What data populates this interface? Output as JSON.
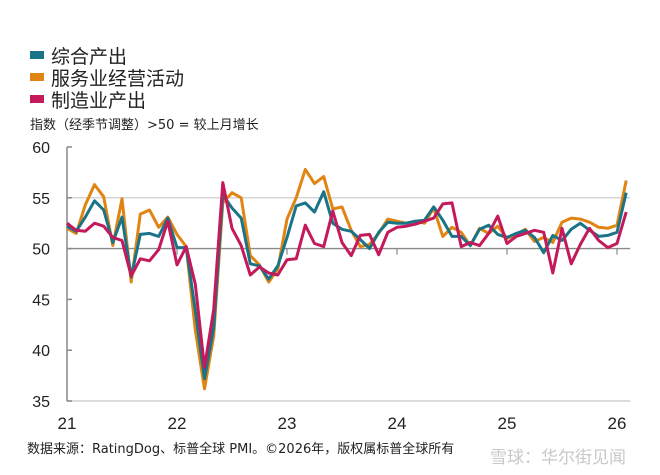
{
  "chart_data": {
    "type": "line",
    "subtitle": "指数（经季节调整）>50 = 较上月增长",
    "x_tick_labels": [
      "21",
      "22",
      "23",
      "24",
      "25",
      "26"
    ],
    "y_tick_labels": [
      "35",
      "40",
      "45",
      "50",
      "55",
      "60"
    ],
    "ylim": [
      35,
      60
    ],
    "x_range": [
      "2021-01",
      "2026-02"
    ],
    "grid": "horizontal at 50 and 55",
    "legend_placement": "top-left",
    "x": [
      "2021-01",
      "2021-02",
      "2021-03",
      "2021-04",
      "2021-05",
      "2021-06",
      "2021-07",
      "2021-08",
      "2021-09",
      "2021-10",
      "2021-11",
      "2021-12",
      "2022-01",
      "2022-02",
      "2022-03",
      "2022-04",
      "2022-05",
      "2022-06",
      "2022-07",
      "2022-08",
      "2022-09",
      "2022-10",
      "2022-11",
      "2022-12",
      "2023-01",
      "2023-02",
      "2023-03",
      "2023-04",
      "2023-05",
      "2023-06",
      "2023-07",
      "2023-08",
      "2023-09",
      "2023-10",
      "2023-11",
      "2023-12",
      "2024-01",
      "2024-02",
      "2024-03",
      "2024-04",
      "2024-05",
      "2024-06",
      "2024-07",
      "2024-08",
      "2024-09",
      "2024-10",
      "2024-11",
      "2024-12",
      "2025-01",
      "2025-02",
      "2025-03",
      "2025-04",
      "2025-05",
      "2025-06",
      "2025-07",
      "2025-08",
      "2025-09",
      "2025-10",
      "2025-11",
      "2025-12",
      "2026-01",
      "2026-02"
    ],
    "series": [
      {
        "name": "综合产出",
        "color": "#1a7488",
        "values": [
          52.2,
          51.7,
          53.1,
          54.7,
          53.8,
          50.6,
          53.1,
          47.2,
          51.4,
          51.5,
          51.2,
          53.0,
          50.1,
          50.1,
          43.9,
          37.2,
          42.2,
          55.3,
          54.0,
          53.0,
          48.5,
          48.3,
          47.0,
          48.3,
          51.1,
          54.2,
          54.5,
          53.6,
          55.6,
          52.5,
          51.9,
          51.7,
          50.9,
          50.0,
          51.6,
          52.6,
          52.5,
          52.5,
          52.7,
          52.8,
          54.1,
          52.8,
          51.2,
          51.2,
          50.3,
          51.9,
          52.3,
          51.4,
          51.1,
          51.5,
          51.8,
          51.1,
          49.6,
          51.3,
          50.8,
          51.9,
          52.5,
          51.8,
          51.2,
          51.3,
          51.6,
          55.5
        ]
      },
      {
        "name": "服务业经营活动",
        "color": "#e08412",
        "values": [
          52.0,
          51.5,
          54.3,
          56.3,
          55.1,
          50.3,
          54.9,
          46.7,
          53.4,
          53.8,
          52.1,
          53.1,
          51.4,
          50.2,
          42.0,
          36.2,
          41.4,
          54.5,
          55.5,
          55.0,
          49.3,
          48.4,
          46.7,
          48.0,
          52.9,
          55.0,
          57.8,
          56.4,
          57.1,
          53.9,
          54.1,
          51.8,
          50.2,
          50.4,
          51.5,
          52.9,
          52.7,
          52.5,
          52.7,
          52.5,
          54.0,
          51.2,
          52.1,
          51.6,
          50.3,
          52.0,
          51.5,
          52.2,
          51.0,
          51.4,
          51.9,
          50.7,
          51.1,
          50.6,
          52.6,
          53.0,
          52.9,
          52.6,
          52.1,
          52.0,
          52.3,
          56.7
        ]
      },
      {
        "name": "制造业产出",
        "color": "#c4195a",
        "values": [
          52.5,
          51.8,
          51.7,
          52.5,
          52.2,
          51.1,
          50.8,
          47.3,
          49.0,
          48.8,
          49.9,
          52.7,
          48.4,
          50.2,
          46.5,
          38.3,
          44.0,
          56.5,
          52.0,
          50.3,
          47.4,
          48.2,
          47.6,
          47.4,
          48.9,
          49.0,
          52.3,
          50.5,
          50.2,
          53.7,
          50.6,
          49.3,
          51.3,
          51.4,
          49.4,
          51.6,
          52.1,
          52.2,
          52.4,
          52.7,
          53.0,
          54.4,
          54.5,
          50.2,
          50.6,
          50.3,
          51.5,
          53.2,
          50.5,
          51.2,
          51.5,
          51.8,
          51.6,
          47.6,
          52.0,
          48.5,
          50.4,
          52.0,
          50.8,
          50.1,
          50.5,
          53.6
        ]
      }
    ]
  },
  "footer": {
    "source": "数据来源：RatingDog、标普全球 PMI。©2026年，版权属标普全球所有",
    "watermark": "雪球：华尔街见闻"
  }
}
